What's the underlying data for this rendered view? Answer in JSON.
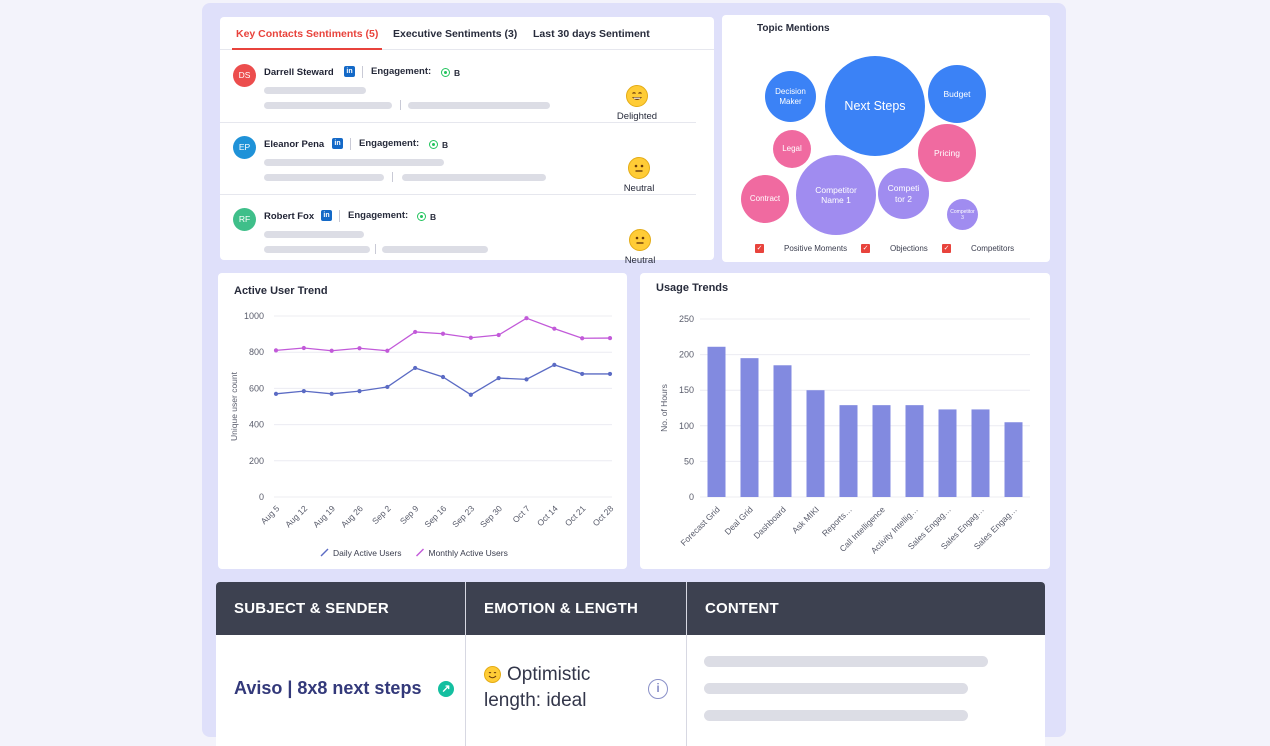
{
  "sentiments": {
    "tabs": [
      "Key Contacts Sentiments (5)",
      "Executive Sentiments (3)",
      "Last 30 days Sentiment"
    ],
    "engagement_label": "Engagement:",
    "contacts": [
      {
        "initials": "DS",
        "name": "Darrell Steward",
        "grade": "B",
        "sentiment": "Delighted",
        "avatar_color": "#ec4d4d"
      },
      {
        "initials": "EP",
        "name": "Eleanor Pena",
        "grade": "B",
        "sentiment": "Neutral",
        "avatar_color": "#1f92d8"
      },
      {
        "initials": "RF",
        "name": "Robert Fox",
        "grade": "B",
        "sentiment": "Neutral",
        "avatar_color": "#3fbf8a"
      }
    ]
  },
  "topics": {
    "title": "Topic Mentions",
    "bubbles": [
      "Next Steps",
      "Decision Maker",
      "Budget",
      "Legal",
      "Pricing",
      "Competitor Name 1",
      "Competi tor 2",
      "Contract",
      "Competitor 3"
    ],
    "legend": [
      "Positive Moments",
      "Objections",
      "Competitors"
    ],
    "colors": {
      "positive": "#3b82f6",
      "objection": "#f06aa0",
      "competitor": "#a08cf0"
    }
  },
  "chart_data": [
    {
      "type": "line",
      "title": "Active User Trend",
      "ylabel": "Unique user count",
      "xlabel": "",
      "ylim": [
        0,
        1000
      ],
      "yticks": [
        "0",
        "200",
        "400",
        "600",
        "800",
        "1000"
      ],
      "categories": [
        "Aug 5",
        "Aug 12",
        "Aug 19",
        "Aug 26",
        "Sep 2",
        "Sep 9",
        "Sep 16",
        "Sep 23",
        "Sep 30",
        "Oct 7",
        "Oct 14",
        "Oct 21",
        "Oct 28"
      ],
      "series": [
        {
          "name": "Daily Active Users",
          "color": "#5b6bc4",
          "values": [
            570,
            585,
            570,
            585,
            608,
            713,
            663,
            565,
            657,
            650,
            730,
            680,
            680
          ]
        },
        {
          "name": "Monthly Active Users",
          "color": "#c25ad9",
          "values": [
            810,
            823,
            808,
            822,
            808,
            912,
            902,
            880,
            895,
            988,
            930,
            877,
            878
          ]
        }
      ],
      "grid": true,
      "legend": "bottom"
    },
    {
      "type": "bar",
      "title": "Usage Trends",
      "ylabel": "No. of Hours",
      "xlabel": "",
      "ylim": [
        0,
        250
      ],
      "yticks": [
        "0",
        "50",
        "100",
        "150",
        "200",
        "250"
      ],
      "categories": [
        "Forecast Grid",
        "Deal Grid",
        "Dashboard",
        "Ask MIKI",
        "Reports…",
        "Call Intelligence",
        "Activity Intellig…",
        "Sales Engag…",
        "Sales Engag…",
        "Sales Engag…"
      ],
      "values": [
        211,
        195,
        185,
        150,
        129,
        129,
        129,
        123,
        123,
        105
      ],
      "color": "#828ae0",
      "grid": true
    }
  ],
  "email": {
    "headers": [
      "SUBJECT & SENDER",
      "EMOTION & LENGTH",
      "CONTENT"
    ],
    "subject": "Aviso | 8x8 next steps",
    "emotion": "Optimistic",
    "length": "length: ideal",
    "info": "i"
  }
}
